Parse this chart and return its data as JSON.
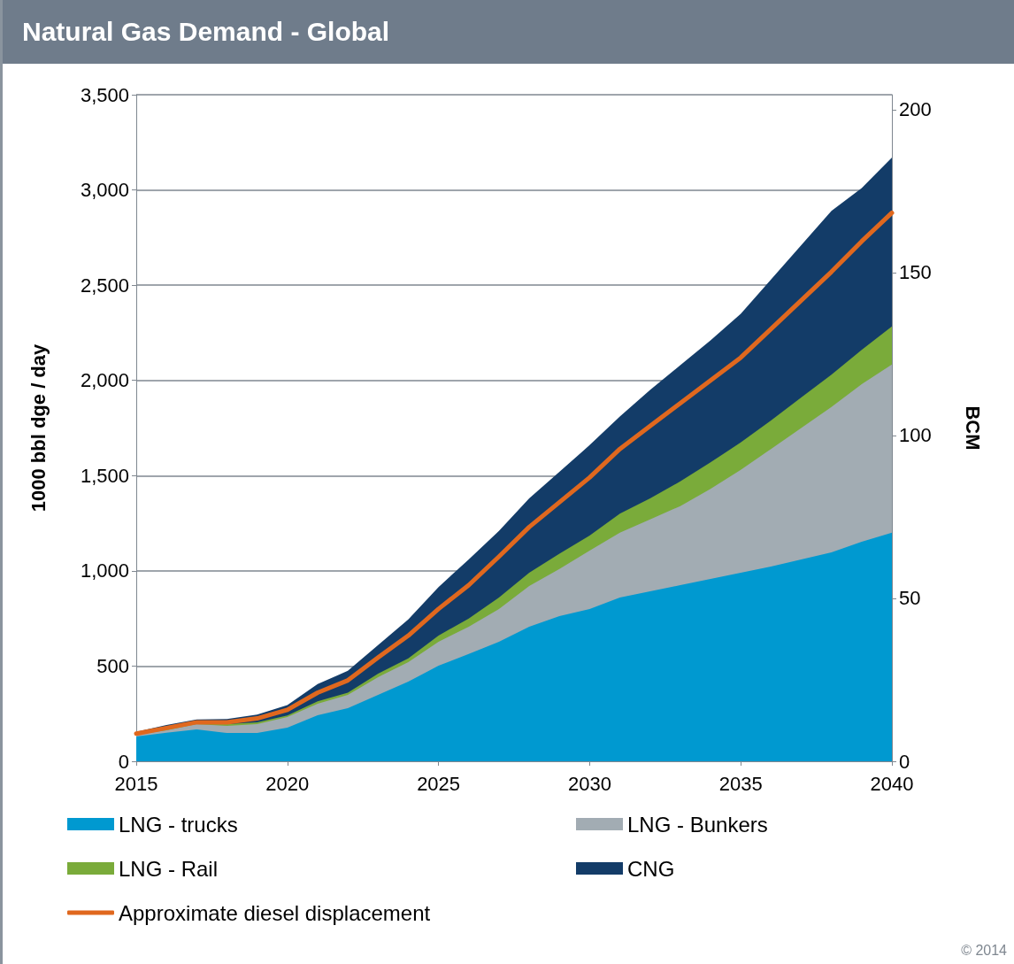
{
  "chart_data": {
    "type": "area",
    "title": "Natural Gas Demand - Global",
    "ylabel": "1000 bbl dge / day",
    "y2label": "BCM",
    "stacked": true,
    "x": [
      2015,
      2016,
      2017,
      2018,
      2019,
      2020,
      2021,
      2022,
      2023,
      2024,
      2025,
      2026,
      2027,
      2028,
      2029,
      2030,
      2031,
      2032,
      2033,
      2034,
      2035,
      2036,
      2037,
      2038,
      2039,
      2040
    ],
    "series": [
      {
        "name": "LNG - trucks",
        "color": "#0099d0",
        "values": [
          130,
          150,
          167,
          149,
          149,
          177,
          242,
          279,
          349,
          418,
          502,
          563,
          628,
          707,
          762,
          800,
          860,
          893,
          925,
          958,
          990,
          1023,
          1060,
          1097,
          1153,
          1200
        ]
      },
      {
        "name": "LNG - Bunkers",
        "color": "#a2acb3",
        "values": [
          10,
          13,
          28,
          37,
          46,
          55,
          60,
          70,
          93,
          103,
          126,
          144,
          172,
          213,
          248,
          306,
          340,
          377,
          415,
          472,
          540,
          617,
          690,
          763,
          827,
          883
        ]
      },
      {
        "name": "LNG - Rail",
        "color": "#7aab3a",
        "values": [
          5,
          7,
          5,
          9,
          10,
          8,
          13,
          11,
          18,
          19,
          32,
          43,
          60,
          70,
          80,
          79,
          100,
          110,
          130,
          140,
          144,
          150,
          160,
          170,
          180,
          200
        ]
      },
      {
        "name": "CNG",
        "color": "#133c68",
        "values": [
          10,
          20,
          20,
          27,
          40,
          55,
          90,
          115,
          150,
          205,
          255,
          310,
          350,
          390,
          430,
          475,
          510,
          570,
          610,
          640,
          676,
          740,
          800,
          860,
          850,
          887
        ]
      },
      {
        "name": "Approximate diesel displacement",
        "type": "line",
        "color": "#e0681e",
        "values": [
          145,
          175,
          205,
          205,
          225,
          270,
          360,
          425,
          545,
          660,
          800,
          925,
          1075,
          1230,
          1360,
          1490,
          1640,
          1760,
          1880,
          2000,
          2120,
          2270,
          2420,
          2570,
          2730,
          2880
        ]
      }
    ],
    "xlim": [
      2015,
      2040
    ],
    "xticks": [
      2015,
      2020,
      2025,
      2030,
      2035,
      2040
    ],
    "ylim": [
      0,
      3500
    ],
    "yticks": [
      0,
      {
        "value": 500,
        "label": "500"
      },
      {
        "value": 1000,
        "label": "1,000"
      },
      {
        "value": 1500,
        "label": "1,500"
      },
      {
        "value": 2000,
        "label": "2,000"
      },
      {
        "value": 2500,
        "label": "2,500"
      },
      {
        "value": 3000,
        "label": "3,000"
      },
      {
        "value": 3500,
        "label": "3,500"
      }
    ],
    "y2lim": [
      0,
      204.6
    ],
    "y2ticks": [
      0,
      50,
      100,
      150,
      200
    ],
    "grid": "y",
    "legend": "bottom",
    "marker": "none",
    "line_style": "solid",
    "annotations": [
      "© 2014"
    ]
  }
}
